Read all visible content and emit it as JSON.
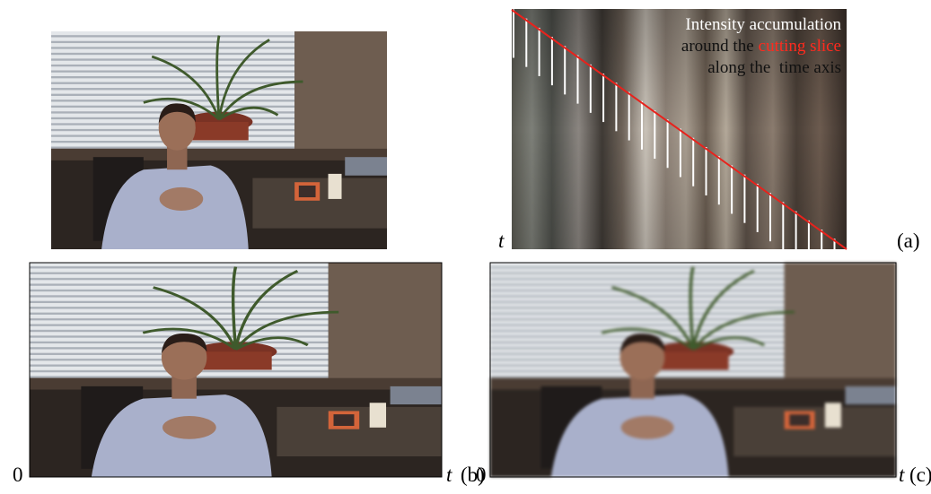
{
  "figure": {
    "panel_a": {
      "annotation": {
        "line1": "Intensity accumulation",
        "line2_prefix": "around the",
        "line2_highlight": "cutting slice",
        "line3": "along the  time axis"
      },
      "axis_label": "t",
      "label": "(a)"
    },
    "panel_b": {
      "start_label": "0",
      "end_label": "t",
      "label": "(b)"
    },
    "panel_c": {
      "start_label": "0",
      "end_label": "t",
      "label": "(c)"
    }
  }
}
